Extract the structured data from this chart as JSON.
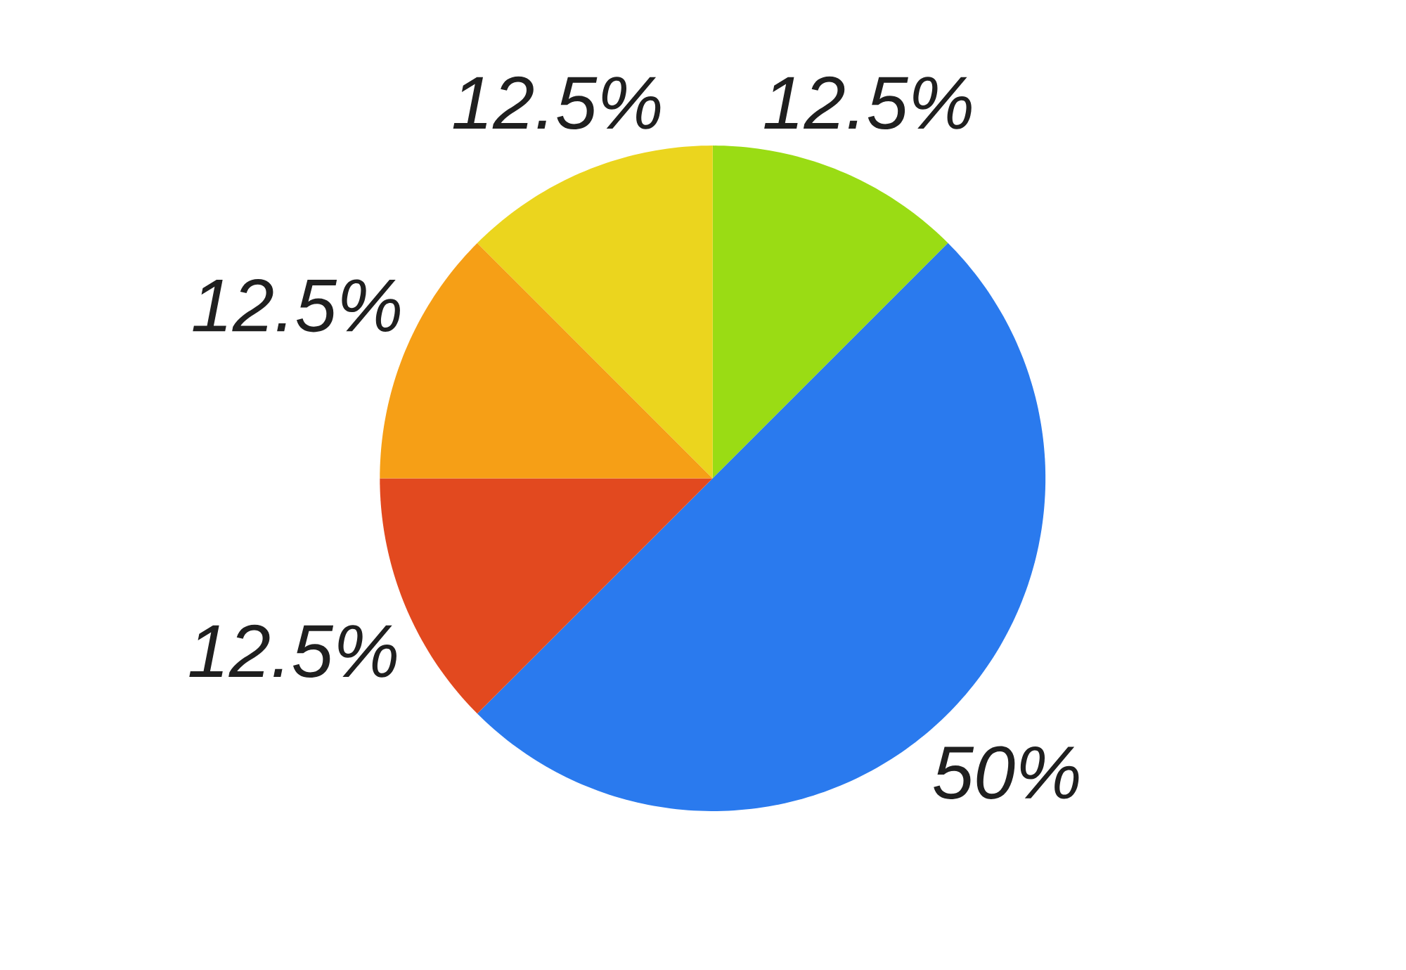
{
  "chart_data": {
    "type": "pie",
    "categories": [
      null,
      null,
      null,
      null,
      null
    ],
    "values": [
      12.5,
      50,
      12.5,
      12.5,
      12.5
    ],
    "colors": [
      "#9adc14",
      "#2a7aee",
      "#e2491f",
      "#f69f16",
      "#ebd51e"
    ],
    "value_labels": [
      "12.5%",
      "50%",
      "12.5%",
      "12.5%",
      "12.5%"
    ]
  }
}
